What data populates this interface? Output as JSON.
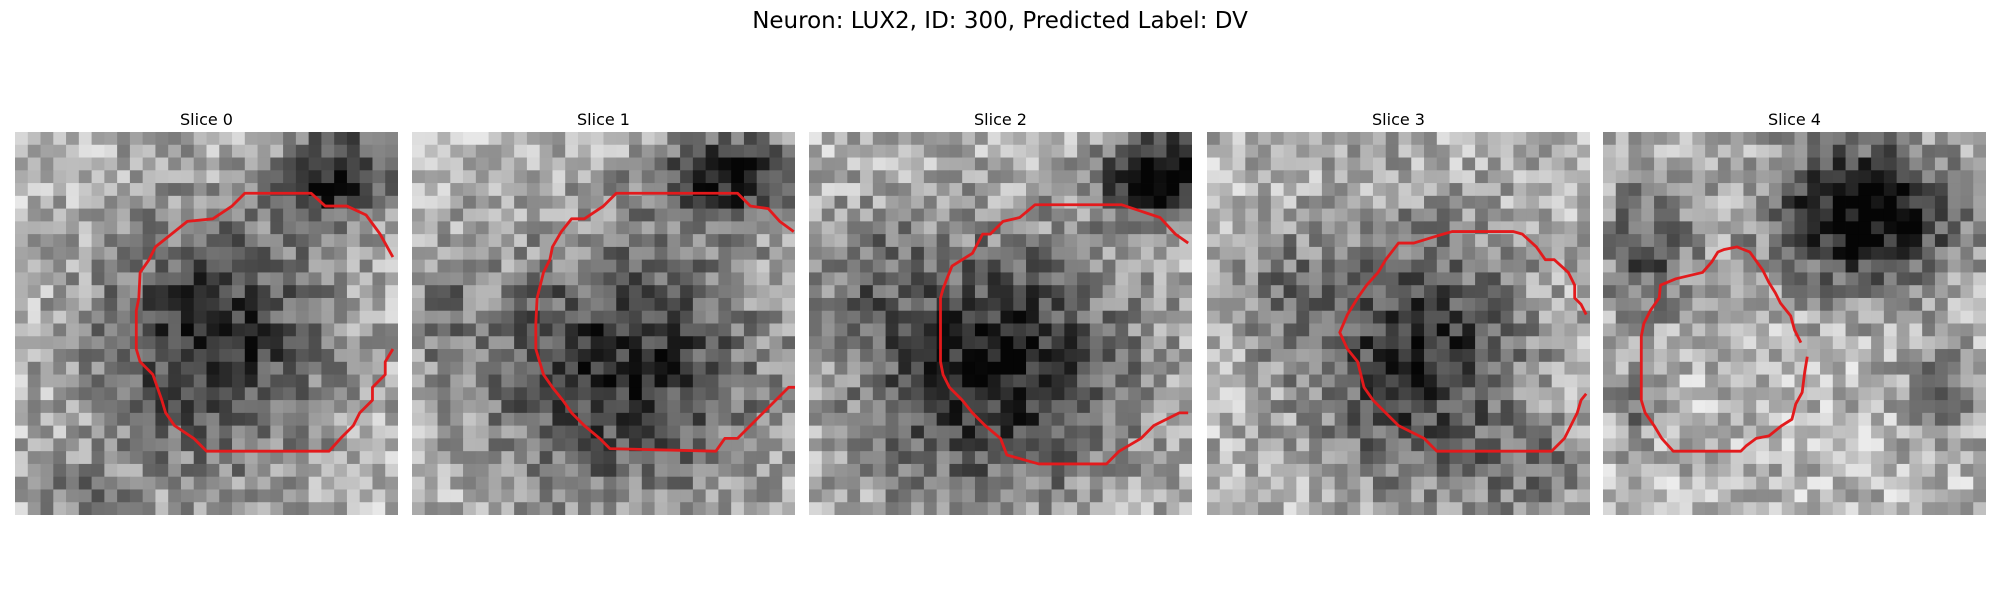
{
  "figure": {
    "title": "Neuron: LUX2, ID: 300, Predicted Label: DV"
  },
  "panels": [
    {
      "title": "Slice 0"
    },
    {
      "title": "Slice 1"
    },
    {
      "title": "Slice 2"
    },
    {
      "title": "Slice 3"
    },
    {
      "title": "Slice 4"
    }
  ],
  "colors": {
    "contour": "#e31a1c",
    "background": "#ffffff"
  }
}
